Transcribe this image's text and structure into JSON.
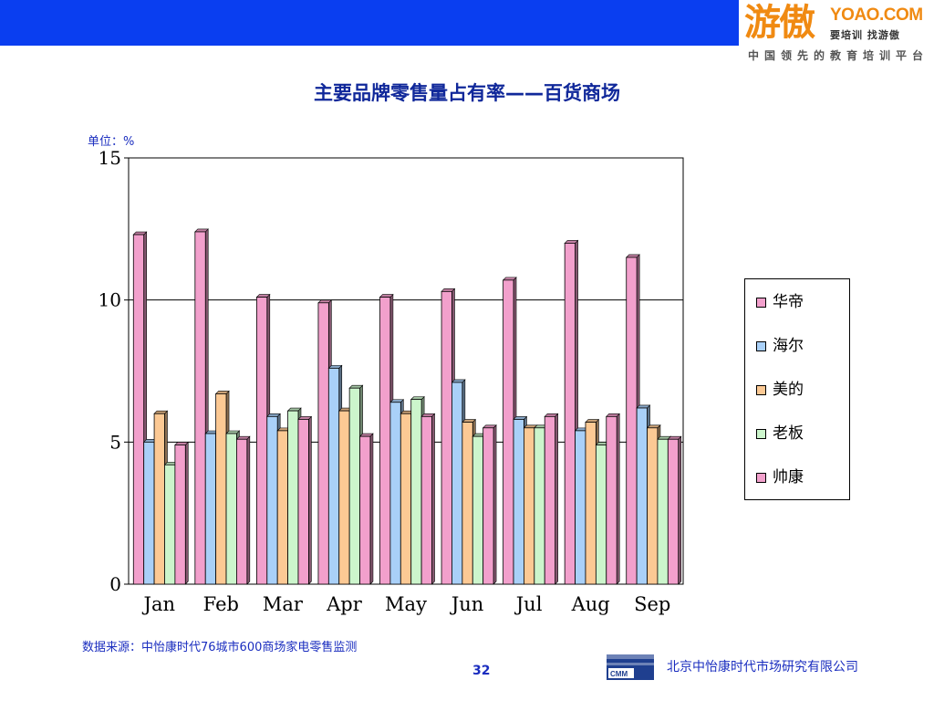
{
  "header": {
    "brand": "游傲",
    "domain": "YOAO.COM",
    "slogan": "要培训 找游傲",
    "tagline": "中国领先的教育培训平台"
  },
  "title": "主要品牌零售量占有率——百货商场",
  "unit": "单位：%",
  "colors": {
    "header_bar": "#0a3ef0",
    "title": "#10289a"
  },
  "chart_data": {
    "type": "bar",
    "categories": [
      "Jan",
      "Feb",
      "Mar",
      "Apr",
      "May",
      "Jun",
      "Jul",
      "Aug",
      "Sep"
    ],
    "ylim": [
      0,
      15
    ],
    "yticks": [
      0,
      5,
      10,
      15
    ],
    "grid": true,
    "legend_position": "right",
    "series": [
      {
        "name": "华帝",
        "color": "#f2a0cc",
        "values": [
          12.3,
          12.4,
          10.1,
          9.9,
          10.1,
          10.3,
          10.7,
          12.0,
          11.5
        ]
      },
      {
        "name": "海尔",
        "color": "#a9d0f8",
        "values": [
          5.0,
          5.3,
          5.9,
          7.6,
          6.4,
          7.1,
          5.8,
          5.4,
          6.2
        ]
      },
      {
        "name": "美的",
        "color": "#fcc994",
        "values": [
          6.0,
          6.7,
          5.4,
          6.1,
          6.0,
          5.7,
          5.5,
          5.7,
          5.5
        ]
      },
      {
        "name": "老板",
        "color": "#ccf5cc",
        "values": [
          4.2,
          5.3,
          6.1,
          6.9,
          6.5,
          5.2,
          5.5,
          4.9,
          5.1
        ]
      },
      {
        "name": "帅康",
        "color": "#f2a0cc",
        "values": [
          4.9,
          5.1,
          5.8,
          5.2,
          5.9,
          5.5,
          5.9,
          5.9,
          5.1
        ]
      }
    ]
  },
  "footer": {
    "source": "数据来源：中怡康时代76城市600商场家电零售监测",
    "page_number": "32",
    "company": "北京中怡康时代市场研究有限公司",
    "logo_text": "CMM"
  }
}
